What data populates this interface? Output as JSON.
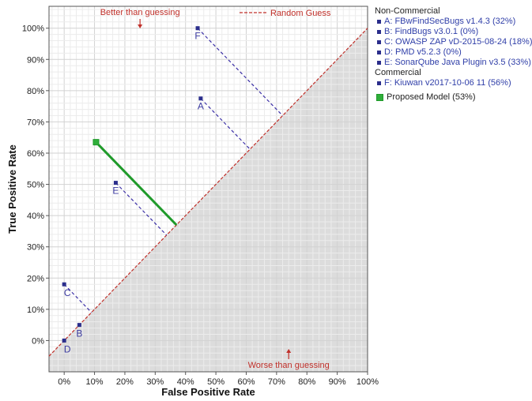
{
  "chart_data": {
    "type": "scatter",
    "xlabel": "False Positive Rate",
    "ylabel": "True Positive Rate",
    "xlim": [
      -0.05,
      1.0
    ],
    "ylim": [
      -0.1,
      1.07
    ],
    "x_ticks": [
      0,
      0.1,
      0.2,
      0.3,
      0.4,
      0.5,
      0.6,
      0.7,
      0.8,
      0.9,
      1.0
    ],
    "y_ticks": [
      0,
      0.1,
      0.2,
      0.3,
      0.4,
      0.5,
      0.6,
      0.7,
      0.8,
      0.9,
      1.0
    ],
    "x_tick_labels": [
      "0%",
      "10%",
      "20%",
      "30%",
      "40%",
      "50%",
      "60%",
      "70%",
      "80%",
      "90%",
      "100%"
    ],
    "y_tick_labels": [
      "0%",
      "10%",
      "20%",
      "30%",
      "40%",
      "50%",
      "60%",
      "70%",
      "80%",
      "90%",
      "100%"
    ],
    "grid": true,
    "legend_position": "right",
    "reference_line": {
      "name": "Random Guess",
      "color": "#c0302a"
    },
    "annotations": {
      "better": "Better than guessing",
      "worse": "Worse than guessing"
    },
    "legend_groups": [
      {
        "title": "Non-Commercial",
        "entries": [
          "A: FBwFindSecBugs v1.4.3 (32%)",
          "B: FindBugs v3.0.1 (0%)",
          "C: OWASP ZAP vD-2015-08-24 (18%)",
          "D: PMD v5.2.3 (0%)",
          "E: SonarQube Java Plugin v3.5 (33%)"
        ]
      },
      {
        "title": "Commercial",
        "entries": [
          "F: Kiuwan v2017-10-06 11 (56%)"
        ]
      }
    ],
    "model_label": "Proposed Model (53%)",
    "points": [
      {
        "label": "A",
        "x": 0.45,
        "y": 0.775
      },
      {
        "label": "B",
        "x": 0.05,
        "y": 0.05
      },
      {
        "label": "C",
        "x": 0.0,
        "y": 0.18
      },
      {
        "label": "D",
        "x": 0.0,
        "y": 0.0
      },
      {
        "label": "E",
        "x": 0.17,
        "y": 0.505
      },
      {
        "label": "F",
        "x": 0.44,
        "y": 1.0
      }
    ],
    "model_point": {
      "x": 0.105,
      "y": 0.635
    },
    "colors": {
      "tool_points": "#2b2e8c",
      "tool_label": "#3b3aa0",
      "tool_lines": "#3b2fa6",
      "model": "#1f9a2a",
      "model_point": "#2fae3a",
      "reference": "#c0302a",
      "shade": "#dcdcdc"
    }
  }
}
